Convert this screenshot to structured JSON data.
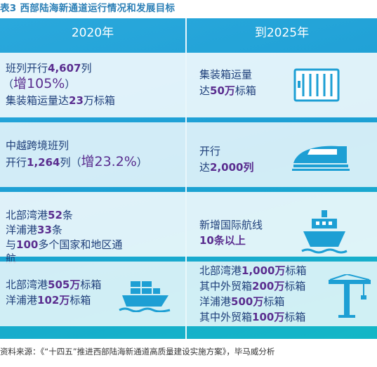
{
  "title": "表3  西部陆海新通道运行情况和发展目标",
  "headers": {
    "left": "2020年",
    "right": "到2025年"
  },
  "rows": [
    {
      "left": {
        "l1a": "班列开行",
        "l1n": "4,607",
        "l1b": "列",
        "l2a": "（",
        "l2n": "增105%",
        "l2b": "）",
        "l3a": "集装箱运量达",
        "l3n": "23",
        "l3b": "万标箱"
      },
      "right": {
        "l1a": "集装箱运量",
        "l2a": "达",
        "l2n": "50万",
        "l2b": "标箱",
        "icon": "container-icon"
      }
    },
    {
      "left": {
        "l1a": "中越跨境班列",
        "l2a": "开行",
        "l2n": "1,264",
        "l2b": "列（",
        "l2big": "增23.2%",
        "l2c": "）"
      },
      "right": {
        "l1a": "开行",
        "l2a": "达",
        "l2n": "2,000列",
        "icon": "train-icon"
      }
    },
    {
      "left": {
        "l1a": "北部湾港",
        "l1n": "52",
        "l1b": "条",
        "l2a": "洋浦港",
        "l2n": "33",
        "l2b": "条",
        "l3a": "与",
        "l3n": "100",
        "l3b": "多个国家和地区通",
        "l4a": "航"
      },
      "right": {
        "l1a": "新增国际航线",
        "l2n": "10条以上",
        "icon": "ship-icon"
      }
    },
    {
      "left": {
        "l1a": "北部湾港",
        "l1n": "505万",
        "l1b": "标箱",
        "l2a": "洋浦港",
        "l2n": "102万",
        "l2b": "标箱",
        "icon": "cargo-ship-icon"
      },
      "right": {
        "l1a": "北部湾港",
        "l1n": "1,000万",
        "l1b": "标箱",
        "l2a": "其中外贸箱",
        "l2n": "200万",
        "l2b": "标箱",
        "l3a": "洋浦港",
        "l3n": "500万",
        "l3b": "标箱",
        "l4a": "其中外贸箱",
        "l4n": "100万",
        "l4b": "标箱",
        "icon": "crane-icon"
      }
    }
  ],
  "source": "资料来源：《“十四五”推进西部陆海新通道高质量建设实施方案》，毕马威分析",
  "colors": {
    "accent": "#1d9fd4",
    "number": "#5a2d8f",
    "text": "#1f3f7a"
  }
}
